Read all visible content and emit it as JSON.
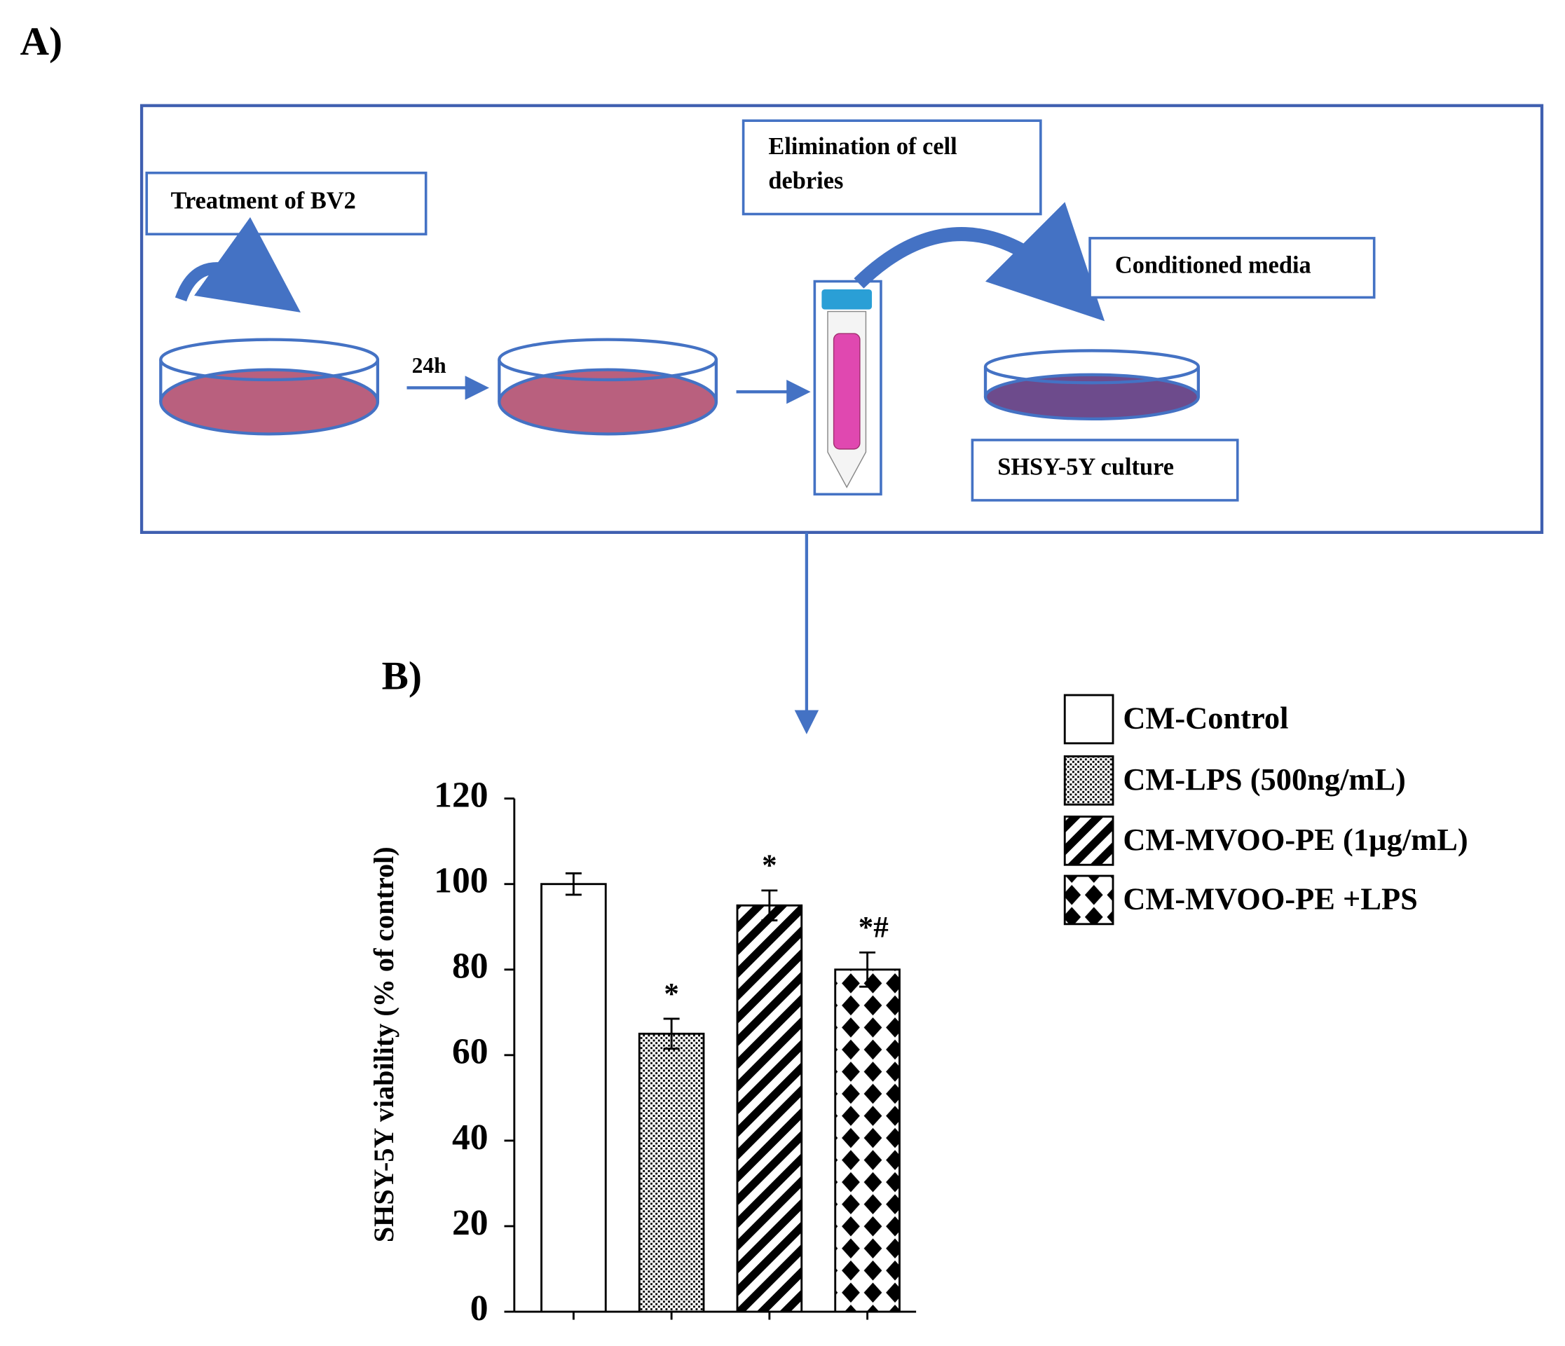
{
  "panel_a": {
    "label": "A)",
    "step_treatment": "Treatment of BV2",
    "time": "24h",
    "step_elimination": [
      "Elimination of cell",
      "debries"
    ],
    "step_media": "Conditioned media",
    "step_culture": "SHSY-5Y culture"
  },
  "chart_data": {
    "type": "bar",
    "panel_label": "B)",
    "y_label": "SHSY-5Y viability (% of control)",
    "categories": [
      "CM-Control",
      "CM-LPS (500ng/mL)",
      "CM-MVOO-PE (1µg/mL)",
      "CM-MVOO-PE +LPS"
    ],
    "values": [
      100,
      65,
      95,
      80
    ],
    "errors": [
      2.5,
      3.5,
      3.5,
      4
    ],
    "annotations": [
      null,
      "*",
      "*",
      "*#"
    ],
    "patterns": [
      "none",
      "dots",
      "stripes",
      "diamonds"
    ],
    "color": "#000000",
    "ylim": [
      0,
      120
    ],
    "yticks": [
      0,
      20,
      40,
      60,
      80,
      100,
      120
    ],
    "grid": false,
    "legend": "top-right"
  }
}
